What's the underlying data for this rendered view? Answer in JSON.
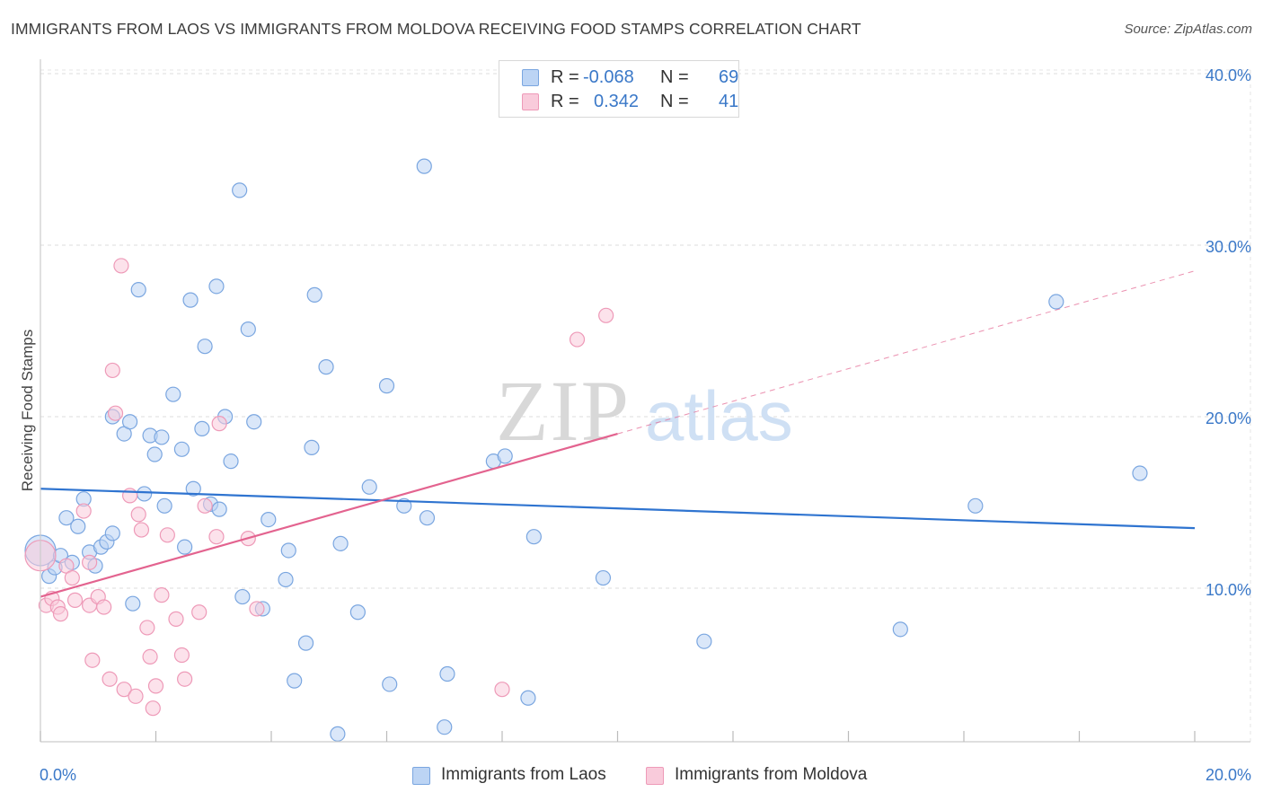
{
  "title": "IMMIGRANTS FROM LAOS VS IMMIGRANTS FROM MOLDOVA RECEIVING FOOD STAMPS CORRELATION CHART",
  "source": "Source: ZipAtlas.com",
  "watermark": {
    "zip": "ZIP",
    "atlas": "atlas"
  },
  "legend": {
    "r_label": "R =",
    "n_label": "N =",
    "items": [
      {
        "r": "-0.068",
        "n": "69",
        "color": "#7aa6e0",
        "fill": "#bcd4f4"
      },
      {
        "r": "0.342",
        "n": "41",
        "color": "#ee9ab8",
        "fill": "#f9cbdb"
      }
    ]
  },
  "chart_data": {
    "type": "scatter",
    "title": "IMMIGRANTS FROM LAOS VS IMMIGRANTS FROM MOLDOVA RECEIVING FOOD STAMPS CORRELATION CHART",
    "xlabel": "",
    "ylabel": "Receiving Food Stamps",
    "xlim": [
      0,
      20
    ],
    "ylim": [
      0,
      41
    ],
    "x_ticks": [
      0,
      2,
      4,
      6,
      8,
      10,
      12,
      14,
      16,
      18,
      20
    ],
    "x_tick_labels": [
      {
        "value": 0,
        "label": "0.0%"
      },
      {
        "value": 20,
        "label": "20.0%"
      }
    ],
    "y_ticks": [
      {
        "value": 10,
        "label": "10.0%"
      },
      {
        "value": 20,
        "label": "20.0%"
      },
      {
        "value": 30,
        "label": "30.0%"
      },
      {
        "value": 40,
        "label": "40.0%"
      }
    ],
    "grid": true,
    "legend_position": "top-center",
    "series": [
      {
        "name": "Immigrants from Laos",
        "color": "#7aa6e0",
        "fill": "#bcd4f4",
        "trend": {
          "x": [
            0,
            20
          ],
          "y": [
            15.8,
            13.5
          ],
          "color": "#2f74d0"
        },
        "points": [
          {
            "x": 0.0,
            "y": 12.2,
            "big": true
          },
          {
            "x": 0.15,
            "y": 10.7
          },
          {
            "x": 0.25,
            "y": 11.2
          },
          {
            "x": 0.35,
            "y": 11.9
          },
          {
            "x": 0.45,
            "y": 14.1
          },
          {
            "x": 0.55,
            "y": 11.5
          },
          {
            "x": 0.65,
            "y": 13.6
          },
          {
            "x": 0.75,
            "y": 15.2
          },
          {
            "x": 0.85,
            "y": 12.1
          },
          {
            "x": 0.95,
            "y": 11.3
          },
          {
            "x": 1.05,
            "y": 12.4
          },
          {
            "x": 1.15,
            "y": 12.7
          },
          {
            "x": 1.25,
            "y": 13.2
          },
          {
            "x": 1.25,
            "y": 20.0
          },
          {
            "x": 1.45,
            "y": 19.0
          },
          {
            "x": 1.55,
            "y": 19.7
          },
          {
            "x": 1.6,
            "y": 9.1
          },
          {
            "x": 1.7,
            "y": 27.4
          },
          {
            "x": 1.8,
            "y": 15.5
          },
          {
            "x": 1.9,
            "y": 18.9
          },
          {
            "x": 1.98,
            "y": 17.8
          },
          {
            "x": 2.1,
            "y": 18.8
          },
          {
            "x": 2.15,
            "y": 14.8
          },
          {
            "x": 2.3,
            "y": 21.3
          },
          {
            "x": 2.45,
            "y": 18.1
          },
          {
            "x": 2.5,
            "y": 12.4
          },
          {
            "x": 2.6,
            "y": 26.8
          },
          {
            "x": 2.65,
            "y": 15.8
          },
          {
            "x": 2.8,
            "y": 19.3
          },
          {
            "x": 2.85,
            "y": 24.1
          },
          {
            "x": 2.95,
            "y": 14.9
          },
          {
            "x": 3.05,
            "y": 27.6
          },
          {
            "x": 3.1,
            "y": 14.6
          },
          {
            "x": 3.2,
            "y": 20.0
          },
          {
            "x": 3.3,
            "y": 17.4
          },
          {
            "x": 3.45,
            "y": 33.2
          },
          {
            "x": 3.5,
            "y": 9.5
          },
          {
            "x": 3.6,
            "y": 25.1
          },
          {
            "x": 3.7,
            "y": 19.7
          },
          {
            "x": 3.85,
            "y": 8.8
          },
          {
            "x": 3.95,
            "y": 14.0
          },
          {
            "x": 4.25,
            "y": 10.5
          },
          {
            "x": 4.3,
            "y": 12.2
          },
          {
            "x": 4.4,
            "y": 4.6
          },
          {
            "x": 4.6,
            "y": 6.8
          },
          {
            "x": 4.7,
            "y": 18.2
          },
          {
            "x": 4.75,
            "y": 27.1
          },
          {
            "x": 4.95,
            "y": 22.9
          },
          {
            "x": 5.15,
            "y": 1.5
          },
          {
            "x": 5.2,
            "y": 12.6
          },
          {
            "x": 5.5,
            "y": 8.6
          },
          {
            "x": 5.7,
            "y": 15.9
          },
          {
            "x": 6.0,
            "y": 21.8
          },
          {
            "x": 6.05,
            "y": 4.4
          },
          {
            "x": 6.3,
            "y": 14.8
          },
          {
            "x": 6.65,
            "y": 34.6
          },
          {
            "x": 6.7,
            "y": 14.1
          },
          {
            "x": 7.0,
            "y": 1.9
          },
          {
            "x": 7.05,
            "y": 5.0
          },
          {
            "x": 7.85,
            "y": 17.4
          },
          {
            "x": 8.05,
            "y": 17.7
          },
          {
            "x": 8.45,
            "y": 3.6
          },
          {
            "x": 8.55,
            "y": 13.0
          },
          {
            "x": 9.75,
            "y": 10.6
          },
          {
            "x": 11.5,
            "y": 6.9
          },
          {
            "x": 14.9,
            "y": 7.6
          },
          {
            "x": 16.2,
            "y": 14.8
          },
          {
            "x": 17.6,
            "y": 26.7
          },
          {
            "x": 19.05,
            "y": 16.7
          }
        ]
      },
      {
        "name": "Immigrants from Moldova",
        "color": "#ee9ab8",
        "fill": "#f9cbdb",
        "trend": {
          "x": [
            0,
            10
          ],
          "y": [
            9.5,
            19.0
          ],
          "extended": {
            "x": [
              10,
              20
            ],
            "y": [
              19.0,
              28.5
            ]
          },
          "color": "#e3638f"
        },
        "points": [
          {
            "x": 0.0,
            "y": 11.9,
            "big": true
          },
          {
            "x": 0.1,
            "y": 9.0
          },
          {
            "x": 0.2,
            "y": 9.4
          },
          {
            "x": 0.3,
            "y": 8.9
          },
          {
            "x": 0.35,
            "y": 8.5
          },
          {
            "x": 0.45,
            "y": 11.3
          },
          {
            "x": 0.55,
            "y": 10.6
          },
          {
            "x": 0.6,
            "y": 9.3
          },
          {
            "x": 0.75,
            "y": 14.5
          },
          {
            "x": 0.85,
            "y": 11.5
          },
          {
            "x": 0.85,
            "y": 9.0
          },
          {
            "x": 0.9,
            "y": 5.8
          },
          {
            "x": 1.0,
            "y": 9.5
          },
          {
            "x": 1.1,
            "y": 8.9
          },
          {
            "x": 1.2,
            "y": 4.7
          },
          {
            "x": 1.25,
            "y": 22.7
          },
          {
            "x": 1.3,
            "y": 20.2
          },
          {
            "x": 1.4,
            "y": 28.8
          },
          {
            "x": 1.45,
            "y": 4.1
          },
          {
            "x": 1.55,
            "y": 15.4
          },
          {
            "x": 1.65,
            "y": 3.7
          },
          {
            "x": 1.7,
            "y": 14.3
          },
          {
            "x": 1.75,
            "y": 13.4
          },
          {
            "x": 1.85,
            "y": 7.7
          },
          {
            "x": 1.9,
            "y": 6.0
          },
          {
            "x": 1.95,
            "y": 3.0
          },
          {
            "x": 2.0,
            "y": 4.3
          },
          {
            "x": 2.1,
            "y": 9.6
          },
          {
            "x": 2.2,
            "y": 13.1
          },
          {
            "x": 2.35,
            "y": 8.2
          },
          {
            "x": 2.45,
            "y": 6.1
          },
          {
            "x": 2.5,
            "y": 4.7
          },
          {
            "x": 2.75,
            "y": 8.6
          },
          {
            "x": 2.85,
            "y": 14.8
          },
          {
            "x": 3.05,
            "y": 13.0
          },
          {
            "x": 3.1,
            "y": 19.6
          },
          {
            "x": 3.6,
            "y": 12.9
          },
          {
            "x": 3.75,
            "y": 8.8
          },
          {
            "x": 8.0,
            "y": 4.1
          },
          {
            "x": 9.3,
            "y": 24.5
          },
          {
            "x": 9.8,
            "y": 25.9
          }
        ]
      }
    ]
  },
  "bottom_legend": [
    {
      "label": "Immigrants from Laos",
      "color": "#7aa6e0",
      "fill": "#bcd4f4"
    },
    {
      "label": "Immigrants from Moldova",
      "color": "#ee9ab8",
      "fill": "#f9cbdb"
    }
  ]
}
